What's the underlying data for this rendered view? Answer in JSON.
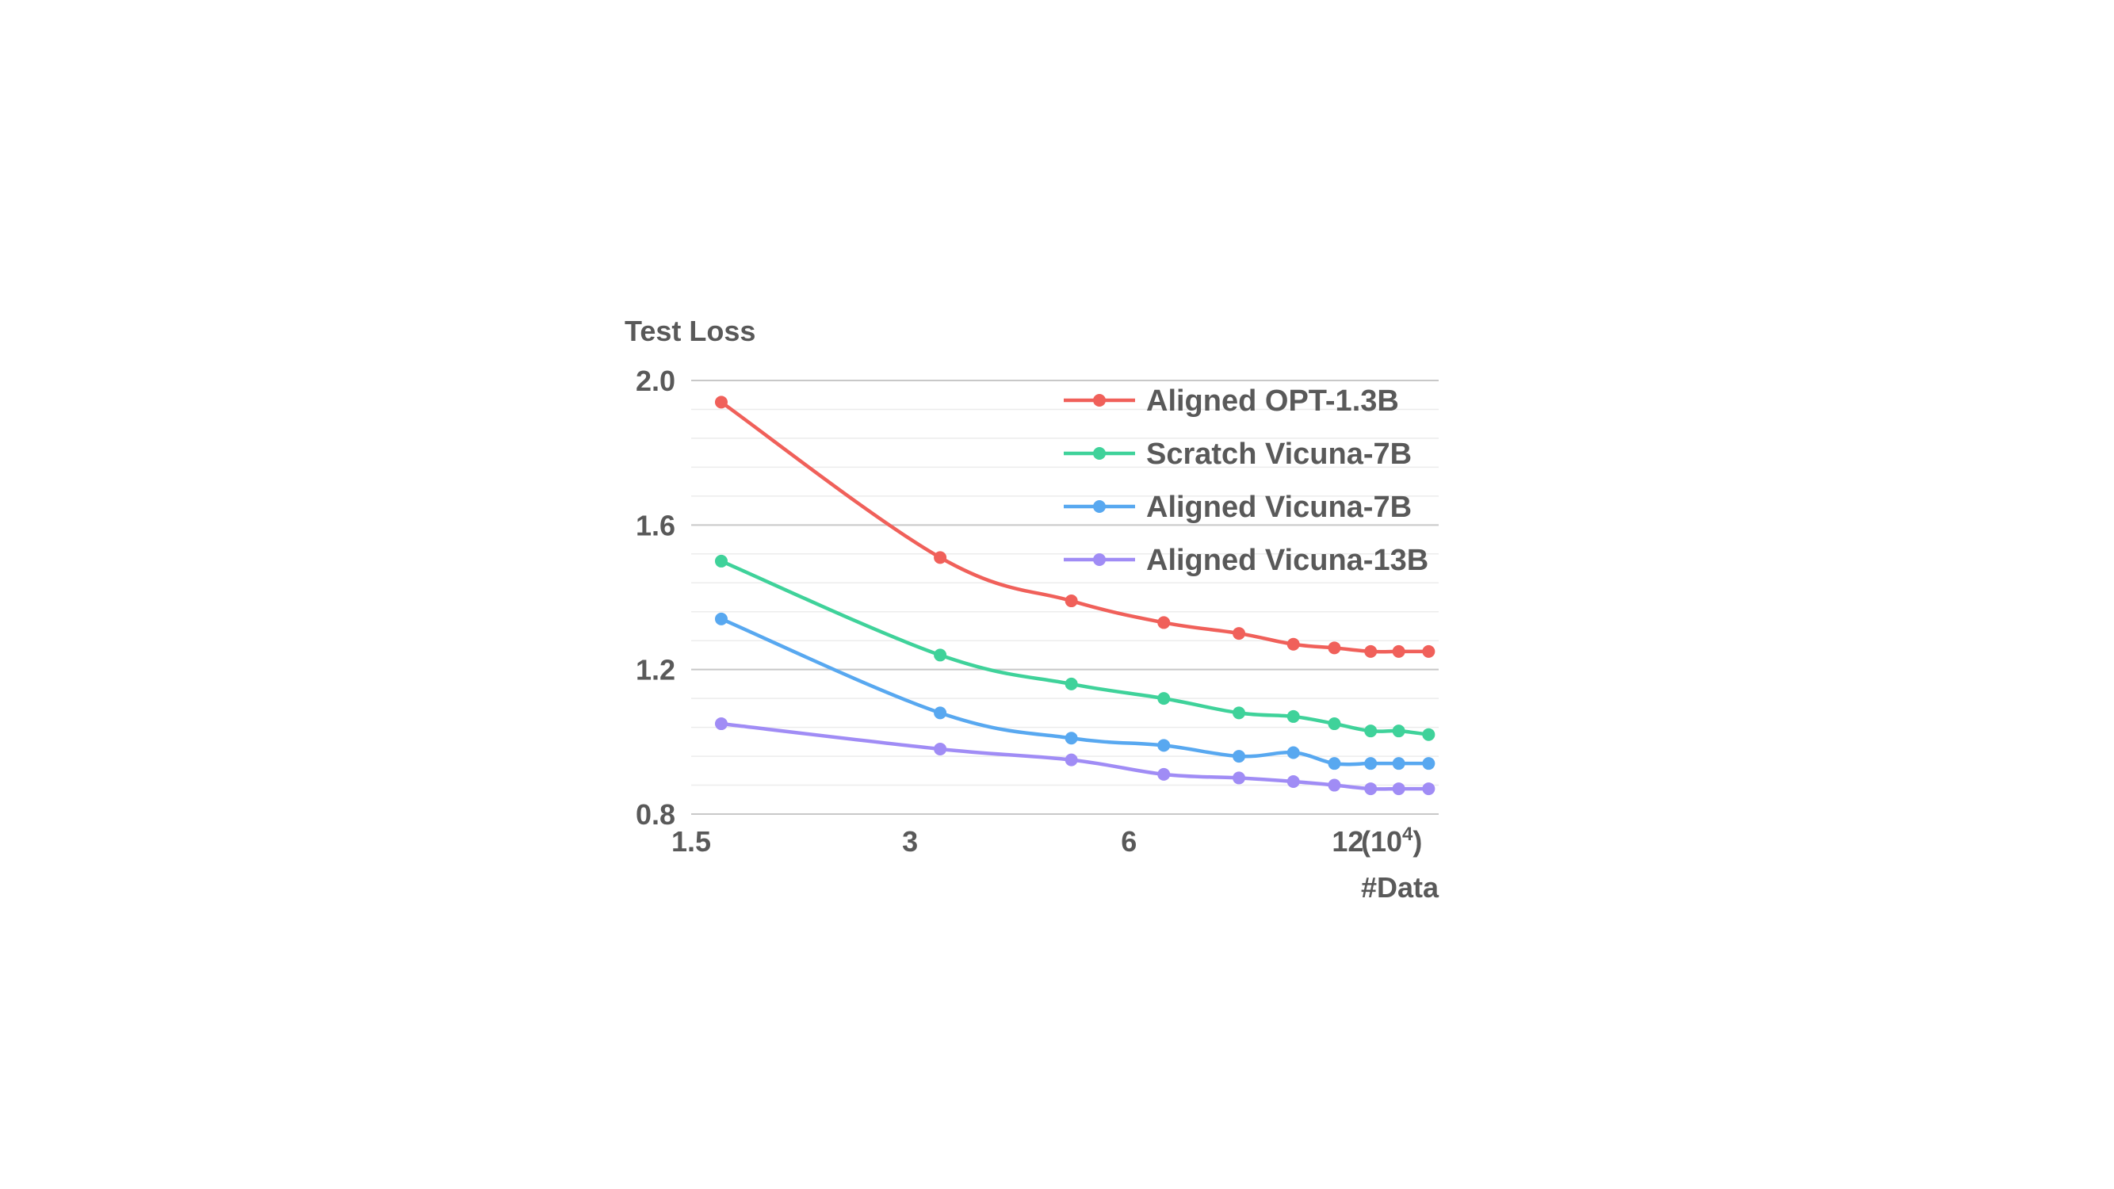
{
  "chart_data": {
    "type": "line",
    "ylabel": "Test Loss",
    "xlabel": "#Data",
    "x_unit_label": "(10",
    "x_unit_exponent": "4",
    "x_unit_close": ")",
    "x_scale": "log",
    "xlim": [
      1.5,
      15
    ],
    "ylim": [
      0.8,
      2.0
    ],
    "yticks": [
      {
        "value": 2.0,
        "label": "2.0"
      },
      {
        "value": 1.6,
        "label": "1.6"
      },
      {
        "value": 1.2,
        "label": "1.2"
      },
      {
        "value": 0.8,
        "label": "0.8"
      }
    ],
    "xticks": [
      {
        "value": 1.5,
        "label": "1.5"
      },
      {
        "value": 3,
        "label": "3"
      },
      {
        "value": 6,
        "label": "6"
      },
      {
        "value": 12,
        "label": "12"
      }
    ],
    "grid": true,
    "legend_position": "top-right",
    "x": [
      1.65,
      3.3,
      5.0,
      6.7,
      8.5,
      10.1,
      11.5,
      12.9,
      14.1,
      15.5
    ],
    "series": [
      {
        "name": "Aligned OPT-1.3B",
        "color": "#f0605a",
        "values": [
          1.94,
          1.51,
          1.39,
          1.33,
          1.3,
          1.27,
          1.26,
          1.25,
          1.25,
          1.25
        ]
      },
      {
        "name": "Scratch Vicuna-7B",
        "color": "#3fd29a",
        "values": [
          1.5,
          1.24,
          1.16,
          1.12,
          1.08,
          1.07,
          1.05,
          1.03,
          1.03,
          1.02
        ]
      },
      {
        "name": "Aligned Vicuna-7B",
        "color": "#58a8f0",
        "values": [
          1.34,
          1.08,
          1.01,
          0.99,
          0.96,
          0.97,
          0.94,
          0.94,
          0.94,
          0.94
        ]
      },
      {
        "name": "Aligned Vicuna-13B",
        "color": "#a08cf5",
        "values": [
          1.05,
          0.98,
          0.95,
          0.91,
          0.9,
          0.89,
          0.88,
          0.87,
          0.87,
          0.87
        ]
      }
    ]
  }
}
